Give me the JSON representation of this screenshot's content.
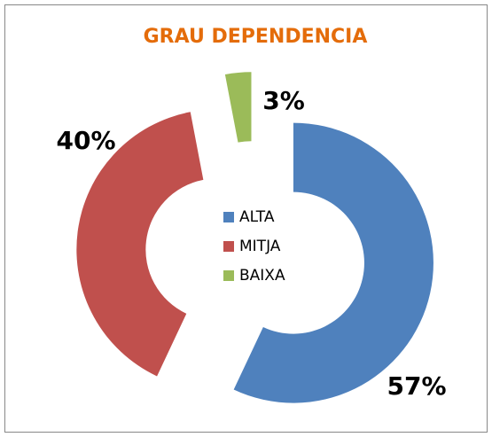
{
  "chart_data": {
    "type": "donut",
    "title": "GRAU DEPENDENCIA",
    "categories": [
      "ALTA",
      "MITJA",
      "BAIXA"
    ],
    "values": [
      57,
      40,
      3
    ],
    "value_labels": [
      "57%",
      "40%",
      "3%"
    ],
    "colors": [
      "#4f81bd",
      "#c0504d",
      "#9bbb59"
    ],
    "legend": "center"
  }
}
